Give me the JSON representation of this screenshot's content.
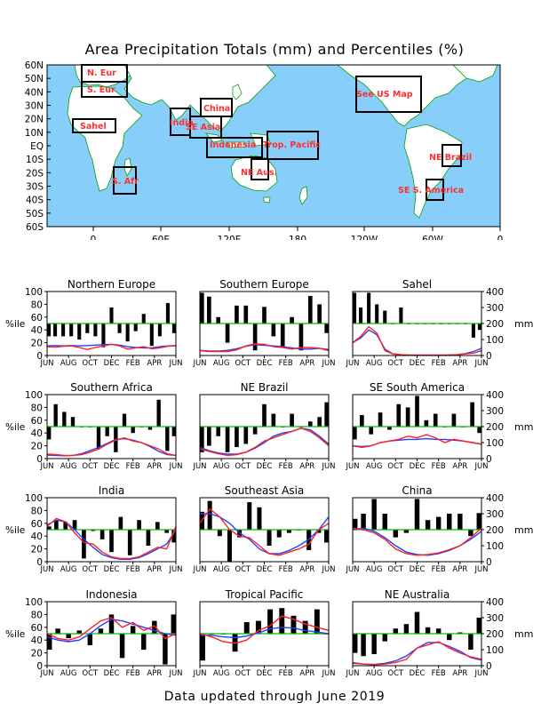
{
  "title": "Area Precipitation Totals (mm) and Percentiles (%)",
  "footer": "Data updated through June 2019",
  "colors": {
    "ocean": "#87CEFA",
    "land": "#FFFFFF",
    "coast": "#00A000",
    "region_label": "#FF3030",
    "bar": "#000000",
    "median": "#00C000",
    "observed": "#FF2020",
    "normal": "#2040FF"
  },
  "map": {
    "lat_labels": [
      "60N",
      "50N",
      "40N",
      "30N",
      "20N",
      "10N",
      "EQ",
      "10S",
      "20S",
      "30S",
      "40S",
      "50S",
      "60S"
    ],
    "lon_labels": [
      "0",
      "60E",
      "120E",
      "180",
      "120W",
      "60W",
      "0"
    ],
    "regions": [
      {
        "label": "N. Eur"
      },
      {
        "label": "S. Eur"
      },
      {
        "label": "Sahel"
      },
      {
        "label": "S. Afr"
      },
      {
        "label": "India"
      },
      {
        "label": "China"
      },
      {
        "label": "SE Asia"
      },
      {
        "label": "Indonesia"
      },
      {
        "label": "Trop. Pacific"
      },
      {
        "label": "NE Aus."
      },
      {
        "label": "See US Map"
      },
      {
        "label": "NE Brazil"
      },
      {
        "label": "SE S. America"
      }
    ]
  },
  "axis_labels": {
    "percentile": "%ile",
    "mm": "mm"
  },
  "month_ticks": [
    "JUN",
    "AUG",
    "OCT",
    "DEC",
    "FEB",
    "APR",
    "JUN"
  ],
  "pct_ticks": [
    "0",
    "20",
    "40",
    "60",
    "80",
    "100"
  ],
  "mm_ticks": [
    "0",
    "100",
    "200",
    "300",
    "400"
  ],
  "chart_data": [
    {
      "type": "bar",
      "title": "Northern Europe",
      "ylim": [
        0,
        100
      ],
      "y2lim": [
        0,
        400
      ],
      "percentiles": [
        30,
        30,
        30,
        30,
        25,
        35,
        30,
        13,
        75,
        35,
        22,
        38,
        65,
        15,
        30,
        82,
        35
      ],
      "observed_mm": [
        55,
        52,
        57,
        60,
        50,
        38,
        50,
        60,
        70,
        60,
        40,
        48,
        55,
        42,
        48,
        58,
        60
      ],
      "normal_mm": [
        60,
        62,
        60,
        62,
        60,
        62,
        65,
        68,
        70,
        65,
        55,
        50,
        48,
        48,
        55,
        60,
        62
      ]
    },
    {
      "type": "bar",
      "title": "Southern Europe",
      "ylim": [
        0,
        100
      ],
      "y2lim": [
        0,
        400
      ],
      "percentiles": [
        98,
        92,
        60,
        20,
        78,
        78,
        8,
        76,
        30,
        13,
        60,
        8,
        93,
        80,
        35
      ],
      "observed_mm": [
        30,
        25,
        25,
        25,
        35,
        60,
        72,
        70,
        55,
        50,
        40,
        50,
        50,
        45,
        30
      ],
      "normal_mm": [
        32,
        28,
        28,
        32,
        42,
        58,
        68,
        64,
        60,
        55,
        48,
        40,
        40,
        45,
        38
      ]
    },
    {
      "type": "bar",
      "title": "Sahel",
      "ylim": [
        0,
        100
      ],
      "y2lim": [
        0,
        400
      ],
      "percentiles": [
        98,
        75,
        98,
        80,
        70,
        50,
        75,
        50,
        50,
        50,
        50,
        50,
        50,
        50,
        50,
        28,
        40
      ],
      "observed_mm": [
        80,
        120,
        180,
        140,
        30,
        10,
        5,
        2,
        2,
        2,
        2,
        2,
        3,
        5,
        10,
        15,
        30
      ],
      "normal_mm": [
        80,
        110,
        160,
        130,
        40,
        10,
        5,
        2,
        2,
        2,
        2,
        2,
        3,
        5,
        12,
        25,
        45
      ]
    },
    {
      "type": "bar",
      "title": "Southern Africa",
      "ylim": [
        0,
        100
      ],
      "y2lim": [
        0,
        400
      ],
      "percentiles": [
        30,
        85,
        73,
        65,
        50,
        50,
        15,
        35,
        10,
        70,
        40,
        50,
        45,
        92,
        12,
        35
      ],
      "observed_mm": [
        28,
        25,
        20,
        20,
        25,
        40,
        60,
        90,
        115,
        130,
        110,
        100,
        80,
        60,
        30,
        20
      ],
      "normal_mm": [
        22,
        20,
        18,
        20,
        30,
        50,
        70,
        95,
        120,
        125,
        115,
        100,
        75,
        45,
        25,
        20
      ]
    },
    {
      "type": "bar",
      "title": "NE Brazil",
      "ylim": [
        0,
        100
      ],
      "y2lim": [
        0,
        400
      ],
      "percentiles": [
        10,
        20,
        35,
        10,
        18,
        23,
        38,
        85,
        70,
        50,
        70,
        50,
        58,
        65,
        88
      ],
      "observed_mm": [
        60,
        45,
        30,
        20,
        25,
        40,
        70,
        110,
        130,
        150,
        170,
        190,
        170,
        130,
        80
      ],
      "normal_mm": [
        70,
        50,
        35,
        28,
        28,
        40,
        65,
        100,
        140,
        160,
        170,
        190,
        180,
        140,
        90
      ]
    },
    {
      "type": "bar",
      "title": "SE South America",
      "ylim": [
        0,
        100
      ],
      "y2lim": [
        0,
        400
      ],
      "percentiles": [
        30,
        68,
        38,
        72,
        45,
        85,
        80,
        98,
        60,
        70,
        50,
        70,
        50,
        88,
        40
      ],
      "observed_mm": [
        80,
        70,
        80,
        100,
        110,
        120,
        140,
        130,
        150,
        130,
        100,
        120,
        110,
        100,
        90
      ],
      "normal_mm": [
        80,
        75,
        80,
        100,
        110,
        115,
        120,
        120,
        125,
        120,
        120,
        115,
        110,
        100,
        90
      ]
    },
    {
      "type": "bar",
      "title": "India",
      "ylim": [
        0,
        100
      ],
      "y2lim": [
        0,
        400
      ],
      "percentiles": [
        55,
        65,
        62,
        65,
        5,
        48,
        35,
        15,
        70,
        10,
        65,
        25,
        62,
        45,
        30
      ],
      "observed_mm": [
        220,
        270,
        250,
        180,
        120,
        110,
        60,
        30,
        20,
        20,
        30,
        60,
        90,
        80,
        220
      ],
      "normal_mm": [
        230,
        260,
        250,
        200,
        140,
        90,
        45,
        25,
        15,
        15,
        25,
        50,
        80,
        110,
        200
      ]
    },
    {
      "type": "bar",
      "title": "Southeast Asia",
      "ylim": [
        0,
        100
      ],
      "y2lim": [
        0,
        400
      ],
      "percentiles": [
        78,
        95,
        40,
        0,
        38,
        93,
        85,
        25,
        38,
        45,
        50,
        18,
        45,
        30
      ],
      "observed_mm": [
        240,
        330,
        280,
        200,
        160,
        150,
        100,
        50,
        40,
        60,
        80,
        110,
        200,
        240
      ],
      "normal_mm": [
        300,
        300,
        280,
        240,
        180,
        140,
        80,
        50,
        50,
        70,
        100,
        140,
        200,
        280
      ],
      "normal_offset": 0
    },
    {
      "type": "bar",
      "title": "China",
      "ylim": [
        0,
        100
      ],
      "y2lim": [
        0,
        400
      ],
      "percentiles": [
        67,
        75,
        98,
        75,
        38,
        45,
        98,
        65,
        70,
        75,
        75,
        40,
        76
      ],
      "observed_mm": [
        210,
        200,
        180,
        140,
        80,
        50,
        40,
        45,
        55,
        75,
        100,
        150,
        210
      ],
      "normal_mm": [
        200,
        210,
        190,
        150,
        100,
        60,
        45,
        40,
        50,
        70,
        100,
        140,
        190
      ]
    },
    {
      "type": "bar",
      "title": "Indonesia",
      "ylim": [
        0,
        100
      ],
      "y2lim": [
        0,
        400
      ],
      "percentiles": [
        25,
        58,
        43,
        55,
        32,
        58,
        80,
        12,
        62,
        25,
        70,
        2,
        80
      ],
      "observed_mm": [
        200,
        170,
        160,
        180,
        230,
        280,
        300,
        240,
        270,
        220,
        250,
        170,
        200
      ],
      "normal_mm": [
        180,
        160,
        150,
        160,
        200,
        250,
        290,
        280,
        260,
        240,
        220,
        200,
        190
      ]
    },
    {
      "type": "bar",
      "title": "Tropical Pacific",
      "ylim": [
        0,
        100
      ],
      "y2lim": [
        0,
        400
      ],
      "percentiles": [
        8,
        50,
        50,
        22,
        68,
        70,
        88,
        90,
        78,
        70,
        88,
        50
      ],
      "observed_mm": [
        200,
        180,
        150,
        140,
        160,
        220,
        250,
        310,
        290,
        260,
        240,
        220
      ],
      "normal_mm": [
        190,
        190,
        180,
        175,
        185,
        205,
        230,
        240,
        235,
        220,
        210,
        200
      ]
    },
    {
      "type": "bar",
      "title": "NE Australia",
      "ylim": [
        0,
        100
      ],
      "y2lim": [
        0,
        400
      ],
      "percentiles": [
        20,
        15,
        18,
        38,
        58,
        65,
        84,
        60,
        58,
        40,
        52,
        25,
        75
      ],
      "observed_mm": [
        20,
        10,
        5,
        10,
        20,
        40,
        110,
        130,
        150,
        110,
        80,
        55,
        40
      ],
      "normal_mm": [
        15,
        10,
        8,
        15,
        30,
        60,
        110,
        145,
        145,
        120,
        90,
        50,
        35
      ]
    }
  ]
}
